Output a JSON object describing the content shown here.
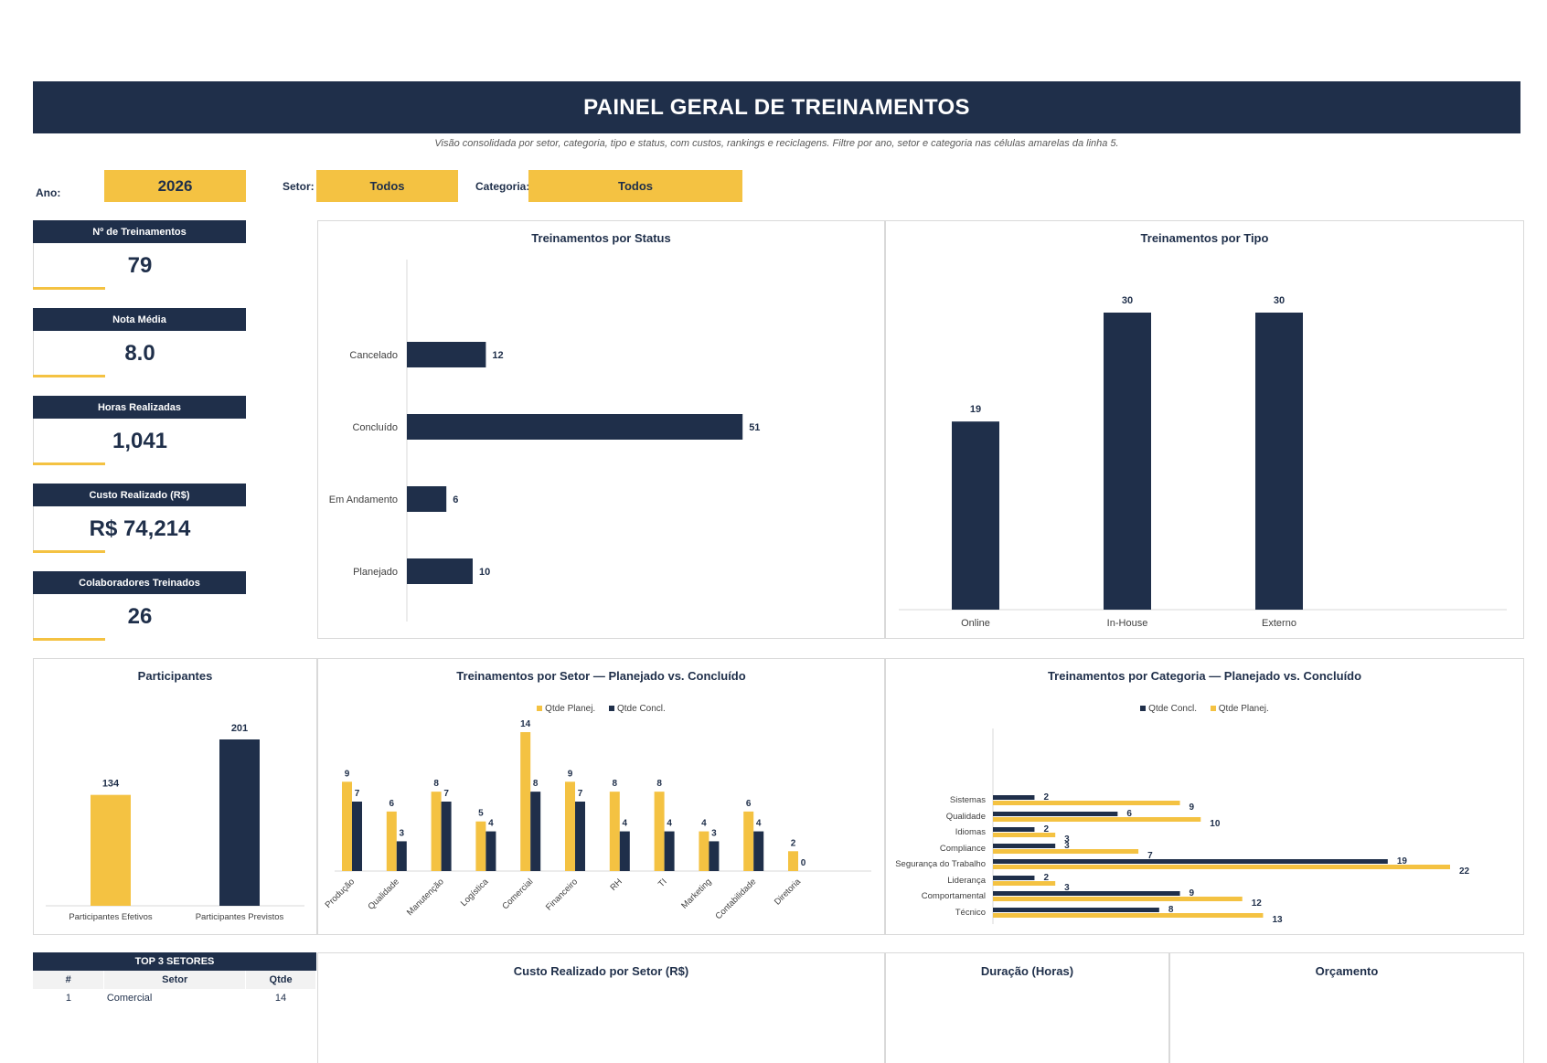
{
  "header": {
    "title": "PAINEL GERAL DE TREINAMENTOS",
    "subtitle": "Visão consolidada por setor, categoria, tipo e status, com custos, rankings e reciclagens. Filtre por ano, setor e categoria nas células amarelas da linha 5."
  },
  "filters": {
    "ano_label": "Ano:",
    "ano_value": "2026",
    "setor_label": "Setor:",
    "setor_value": "Todos",
    "categoria_label": "Categoria:",
    "categoria_value": "Todos"
  },
  "kpis": [
    {
      "label": "Nº de Treinamentos",
      "value": "79"
    },
    {
      "label": "Nota Média",
      "value": "8.0"
    },
    {
      "label": "Horas Realizadas",
      "value": "1,041"
    },
    {
      "label": "Custo Realizado (R$)",
      "value": "R$ 74,214"
    },
    {
      "label": "Colaboradores Treinados",
      "value": "26"
    }
  ],
  "colors": {
    "navy": "#1f2f4a",
    "gold": "#f4c242"
  },
  "chart_data": [
    {
      "id": "status",
      "type": "bar",
      "orientation": "horizontal",
      "title": "Treinamentos por Status",
      "categories": [
        "Cancelado",
        "Concluído",
        "Em Andamento",
        "Planejado"
      ],
      "values": [
        12,
        51,
        6,
        10
      ],
      "xlim": [
        0,
        60
      ],
      "grid": false
    },
    {
      "id": "tipo",
      "type": "bar",
      "title": "Treinamentos por Tipo",
      "categories": [
        "Online",
        "In-House",
        "Externo"
      ],
      "values": [
        19,
        30,
        30
      ],
      "ylim": [
        0,
        30
      ],
      "grid": false
    },
    {
      "id": "participantes",
      "type": "bar",
      "title": "Participantes",
      "categories": [
        "Participantes Efetivos",
        "Participantes Previstos"
      ],
      "values": [
        134,
        201
      ],
      "ylim": [
        0,
        201
      ],
      "grid": false
    },
    {
      "id": "setor",
      "type": "bar",
      "title": "Treinamentos por Setor — Planejado vs. Concluído",
      "legend": "top",
      "categories": [
        "Produção",
        "Qualidade",
        "Manutenção",
        "Logística",
        "Comercial",
        "Financeiro",
        "RH",
        "TI",
        "Marketing",
        "Contabilidade",
        "Diretoria"
      ],
      "series": [
        {
          "name": "Qtde Planej.",
          "values": [
            9,
            6,
            8,
            5,
            14,
            9,
            8,
            8,
            4,
            6,
            2
          ]
        },
        {
          "name": "Qtde Concl.",
          "values": [
            7,
            3,
            7,
            4,
            8,
            7,
            4,
            4,
            3,
            4,
            0
          ]
        }
      ],
      "ylim": [
        0,
        14
      ],
      "grid": false
    },
    {
      "id": "categoria",
      "type": "bar",
      "orientation": "horizontal",
      "title": "Treinamentos por Categoria — Planejado vs. Concluído",
      "legend": "top",
      "categories": [
        "Sistemas",
        "Qualidade",
        "Idiomas",
        "Compliance",
        "Segurança do Trabalho",
        "Liderança",
        "Comportamental",
        "Técnico"
      ],
      "series": [
        {
          "name": "Qtde Concl.",
          "values": [
            2,
            6,
            2,
            3,
            19,
            2,
            9,
            8
          ]
        },
        {
          "name": "Qtde Planej.",
          "values": [
            9,
            10,
            3,
            7,
            22,
            3,
            12,
            13
          ]
        }
      ],
      "xlim": [
        0,
        22
      ],
      "grid": false
    }
  ],
  "top3": {
    "title": "TOP 3 SETORES",
    "columns": [
      "#",
      "Setor",
      "Qtde"
    ],
    "rows": [
      [
        "1",
        "Comercial",
        "14"
      ]
    ]
  },
  "bottom_panels": {
    "custo": "Custo Realizado por Setor (R$)",
    "duracao": "Duração (Horas)",
    "orcamento": "Orçamento"
  }
}
